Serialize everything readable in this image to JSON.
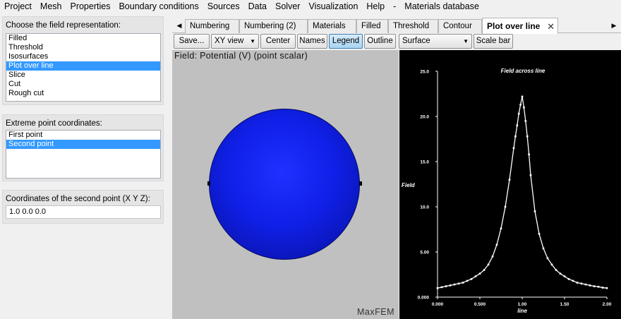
{
  "menubar": {
    "items": [
      "Project",
      "Mesh",
      "Properties",
      "Boundary conditions",
      "Sources",
      "Data",
      "Solver",
      "Visualization",
      "Help",
      "-",
      "Materials database"
    ]
  },
  "left_panel": {
    "representation": {
      "title": "Choose the field representation:",
      "items": [
        "Filled",
        "Threshold",
        "Isosurfaces",
        "Plot over line",
        "Slice",
        "Cut",
        "Rough cut"
      ],
      "selected": "Plot over line"
    },
    "extreme": {
      "title": "Extreme point coordinates:",
      "items": [
        "First point",
        "Second point"
      ],
      "selected": "Second point"
    },
    "coords": {
      "title": "Coordinates of the second point (X Y Z):",
      "value": "1.0 0.0 0.0"
    }
  },
  "tabs": {
    "items": [
      "Numbering",
      "Numbering (2)",
      "Materials",
      "Filled",
      "Threshold",
      "Contour",
      "Plot over line"
    ],
    "active": "Plot over line",
    "close_glyph": "✕",
    "left_arrow": "◀",
    "right_arrow": "▶"
  },
  "toolbar": {
    "save_label": "Save...",
    "view_select": "XY view",
    "center_label": "Center",
    "names_label": "Names",
    "legend_label": "Legend",
    "outline_label": "Outline",
    "surface_select": "Surface",
    "scalebar_label": "Scale bar"
  },
  "viewer": {
    "field_label": "Field: Potential (V) (point scalar)",
    "brand": "MaxFEM",
    "sphere_color": "#1828f0"
  },
  "chart_data": {
    "type": "line",
    "title": "Field across line",
    "xlabel": "line",
    "ylabel": "Field",
    "xlim": [
      0,
      2
    ],
    "ylim": [
      0,
      25
    ],
    "xticks": [
      "0.000",
      "0.500",
      "1.00",
      "1.50",
      "2.00"
    ],
    "yticks": [
      "0.000",
      "5.00",
      "10.0",
      "15.0",
      "20.0",
      "25.0"
    ],
    "series": [
      {
        "color": "#ffffff",
        "x": [
          0.0,
          0.05,
          0.1,
          0.15,
          0.2,
          0.25,
          0.3,
          0.35,
          0.4,
          0.45,
          0.5,
          0.55,
          0.6,
          0.65,
          0.7,
          0.75,
          0.8,
          0.85,
          0.9,
          0.92,
          0.94,
          0.96,
          0.98,
          1.0,
          1.02,
          1.04,
          1.06,
          1.08,
          1.1,
          1.15,
          1.2,
          1.25,
          1.3,
          1.35,
          1.4,
          1.45,
          1.5,
          1.55,
          1.6,
          1.65,
          1.7,
          1.75,
          1.8,
          1.85,
          1.9,
          1.95,
          2.0
        ],
        "y": [
          1.0,
          1.1,
          1.2,
          1.3,
          1.4,
          1.5,
          1.6,
          1.8,
          2.0,
          2.3,
          2.6,
          3.0,
          3.6,
          4.5,
          5.8,
          7.6,
          10.0,
          13.0,
          16.5,
          17.8,
          19.0,
          20.3,
          21.3,
          22.2,
          21.0,
          19.5,
          17.8,
          15.8,
          13.5,
          9.5,
          7.0,
          5.4,
          4.3,
          3.6,
          3.0,
          2.6,
          2.3,
          2.0,
          1.8,
          1.6,
          1.5,
          1.4,
          1.3,
          1.2,
          1.15,
          1.05,
          1.0
        ]
      }
    ]
  }
}
